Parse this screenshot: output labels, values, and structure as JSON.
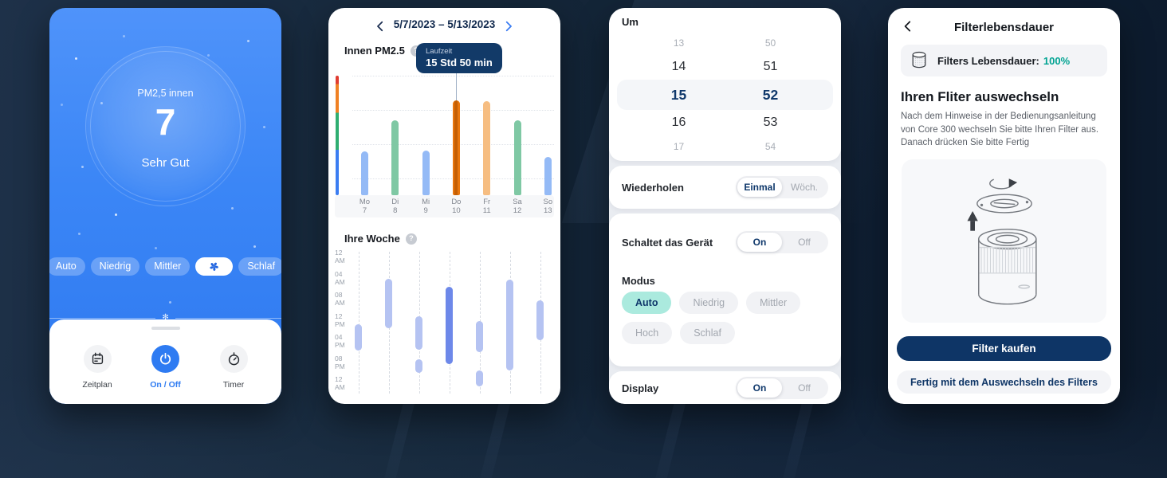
{
  "colors": {
    "accent_blue": "#2e7bf2",
    "navy": "#0e3566",
    "teal": "#00a392",
    "bar_blue": "#94baf6",
    "bar_green": "#7fc8a4",
    "bar_orange_dark": "#e8770f",
    "bar_orange_dark_stripe": "#c55f04",
    "bar_orange_light": "#f6bd81",
    "week_pill": "#b5c3f2",
    "week_pill_dark": "#6d88e9"
  },
  "device": {
    "pm_label": "PM2,5 innen",
    "pm_value": "7",
    "quality": "Sehr Gut",
    "divider_glyph": "✻",
    "modes": [
      {
        "label": "Auto"
      },
      {
        "label": "Niedrig"
      },
      {
        "label": "Mittler"
      },
      {
        "icon": "fan-icon"
      },
      {
        "label": "Schlaf"
      }
    ],
    "actions": [
      {
        "label": "Zeitplan",
        "icon": "calendar-icon",
        "active": false
      },
      {
        "label": "On / Off",
        "icon": "power-icon",
        "active": true
      },
      {
        "label": "Timer",
        "icon": "timer-icon",
        "active": false
      }
    ]
  },
  "stats": {
    "date_range": "5/7/2023 – 5/13/2023",
    "pm_title": "Innen PM2.5",
    "week_title": "Ihre Woche",
    "help_glyph": "?",
    "tooltip": {
      "title": "Laufzeit",
      "value": "15 Std 50 min"
    }
  },
  "chart_data": [
    {
      "type": "bar",
      "title": "Innen PM2.5",
      "categories": [
        [
          "Mo",
          "7"
        ],
        [
          "Di",
          "8"
        ],
        [
          "Mi",
          "9"
        ],
        [
          "Do",
          "10"
        ],
        [
          "Fr",
          "11"
        ],
        [
          "Sa",
          "12"
        ],
        [
          "So",
          "13"
        ]
      ],
      "values_hours": [
        7.4,
        12.5,
        7.5,
        15.83,
        15.8,
        12.5,
        6.4
      ],
      "bar_colors": [
        "blue",
        "green",
        "blue",
        "orange_dark",
        "orange_light",
        "green",
        "blue"
      ],
      "ylim": [
        0,
        20
      ],
      "selected_index": 3,
      "selected_tooltip": "Laufzeit 15 Std 50 min",
      "axis_scale_colors": [
        "#e03c31",
        "#f08124",
        "#2fae71",
        "#3b7df2"
      ]
    },
    {
      "type": "schedule",
      "title": "Ihre Woche",
      "time_labels": [
        "12 AM",
        "04 AM",
        "08 AM",
        "12 PM",
        "04 PM",
        "08 PM",
        "12 AM"
      ],
      "columns": 7,
      "bars": [
        {
          "col": 0,
          "start_h": 13.7,
          "end_h": 18.7,
          "dark": false
        },
        {
          "col": 1,
          "start_h": 5.1,
          "end_h": 14.5,
          "dark": false
        },
        {
          "col": 2,
          "start_h": 12.2,
          "end_h": 18.6,
          "dark": false
        },
        {
          "col": 2,
          "start_h": 20.4,
          "end_h": 22.9,
          "dark": false
        },
        {
          "col": 3,
          "start_h": 6.6,
          "end_h": 21.3,
          "dark": true
        },
        {
          "col": 4,
          "start_h": 13.1,
          "end_h": 19.0,
          "dark": false
        },
        {
          "col": 4,
          "start_h": 22.5,
          "end_h": 25.5,
          "dark": false
        },
        {
          "col": 5,
          "start_h": 5.3,
          "end_h": 22.5,
          "dark": false
        },
        {
          "col": 6,
          "start_h": 9.2,
          "end_h": 16.8,
          "dark": false
        }
      ]
    }
  ],
  "schedule": {
    "um_label": "Um",
    "hours": [
      "13",
      "14",
      "15",
      "16",
      "17"
    ],
    "minutes": [
      "50",
      "51",
      "52",
      "53",
      "54"
    ],
    "selected_hour": "15",
    "selected_minute": "52",
    "repeat_label": "Wiederholen",
    "repeat_options": [
      "Einmal",
      "Wöch."
    ],
    "repeat_selected": 0,
    "power_label": "Schaltet das Gerät",
    "power_options": [
      "On",
      "Off"
    ],
    "power_selected": 0,
    "mode_label": "Modus",
    "mode_options": [
      "Auto",
      "Niedrig",
      "Mittler",
      "Hoch",
      "Schlaf"
    ],
    "mode_selected": 0,
    "display_label": "Display",
    "display_options": [
      "On",
      "Off"
    ],
    "display_selected": 0
  },
  "filter": {
    "title": "Filterlebensdauer",
    "status_label": "Filters Lebensdauer:",
    "status_value": "100%",
    "heading": "Ihren Fliter auswechseln",
    "body": "Nach dem Hinweise in der Bedienungsanleitung von Core 300 wechseln Sie bitte Ihren Filter aus. Danach drücken Sie bitte Fertig",
    "buy_button": "Filter kaufen",
    "done_button": "Fertig mit dem Auswechseln des Filters"
  }
}
